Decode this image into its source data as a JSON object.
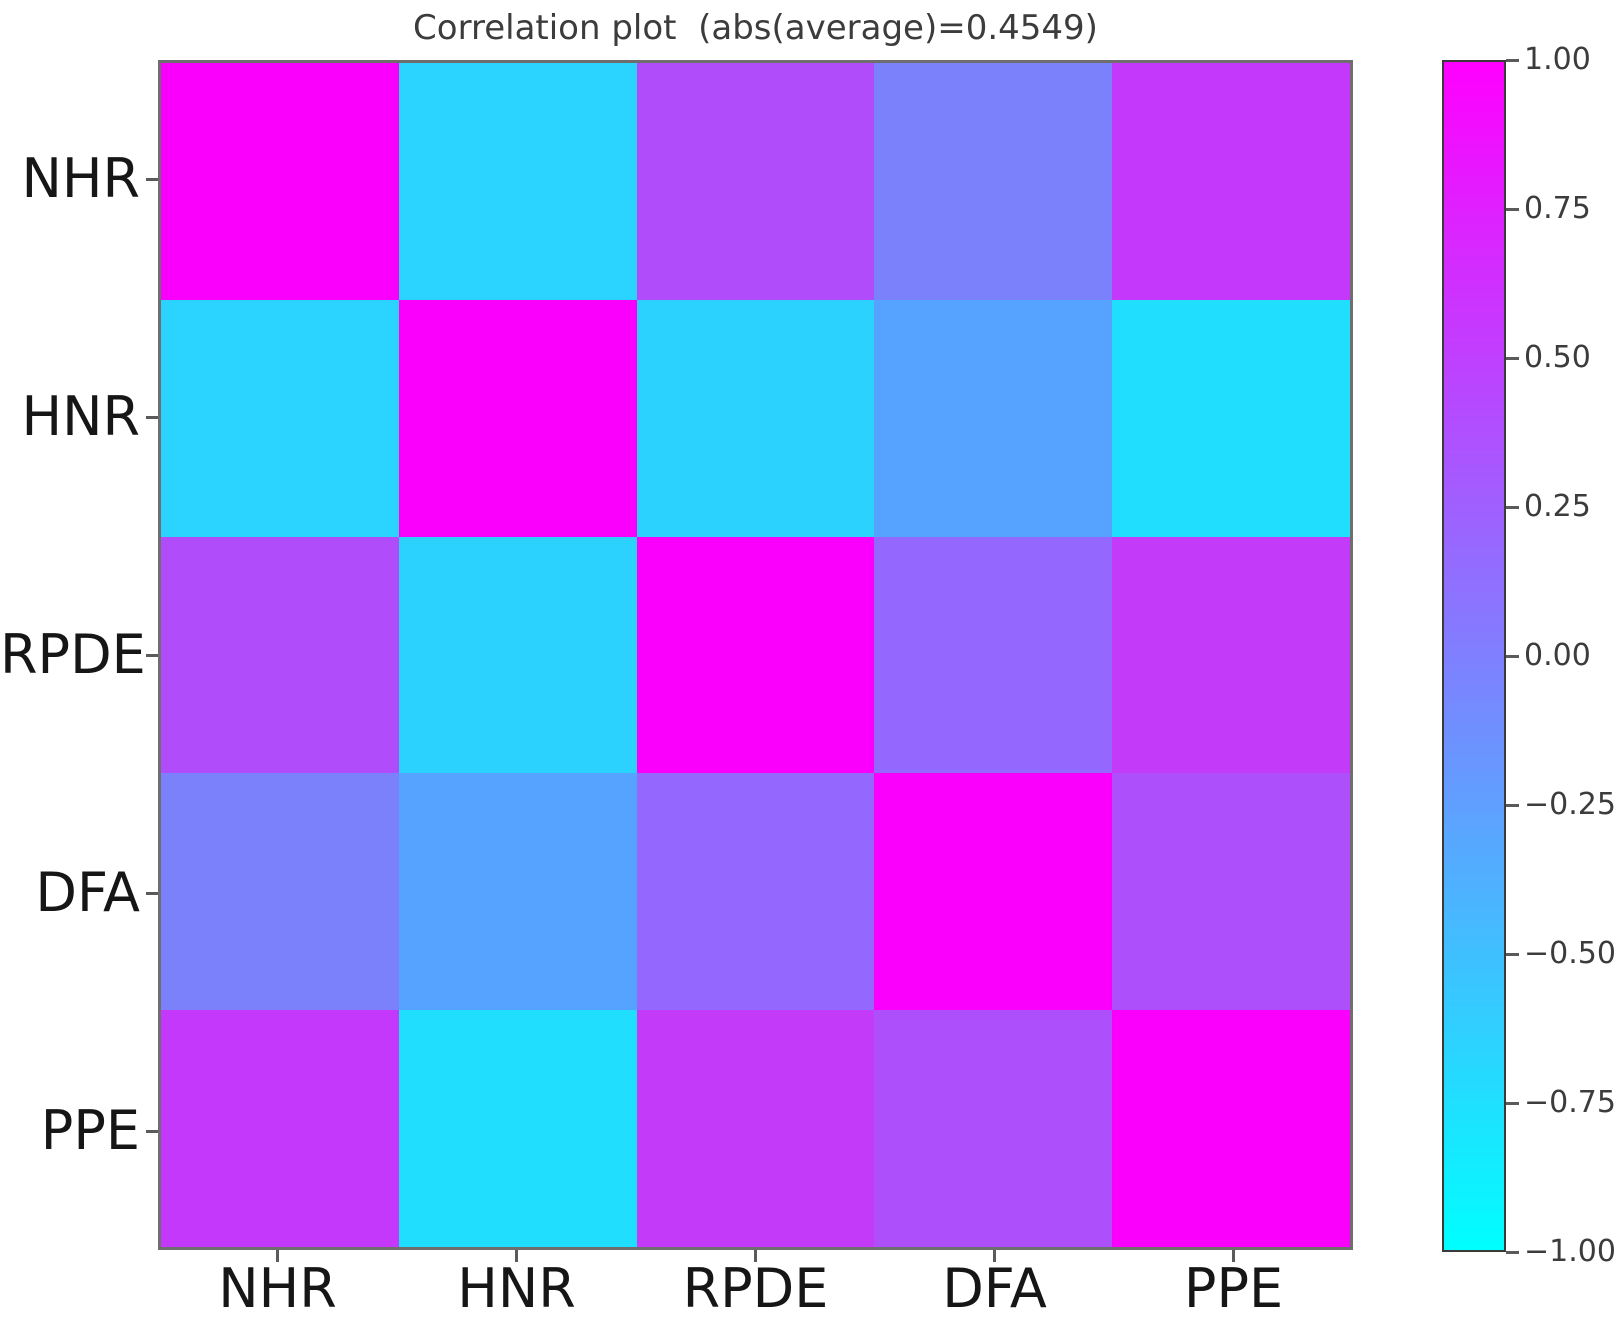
{
  "page": {
    "background": "#ffffff"
  },
  "chart_data": {
    "type": "heatmap",
    "title": "Correlation plot  (abs(average)=0.4549)",
    "abs_average": 0.4549,
    "x_labels": [
      "NHR",
      "HNR",
      "RPDE",
      "DFA",
      "PPE"
    ],
    "y_labels": [
      "NHR",
      "HNR",
      "RPDE",
      "DFA",
      "PPE"
    ],
    "vmin": -1.0,
    "vmax": 1.0,
    "grid": false,
    "colormap": {
      "name": "cool",
      "low_color": "#00ffff",
      "high_color": "#ff00ff"
    },
    "colorbar_tick_labels": [
      "1.00",
      "0.75",
      "0.50",
      "0.25",
      "0.00",
      "−0.25",
      "−0.50",
      "−0.75",
      "−1.00"
    ],
    "colorbar_tick_values": [
      1.0,
      0.75,
      0.5,
      0.25,
      0.0,
      -0.25,
      -0.5,
      -0.75,
      -1.0
    ],
    "values": [
      [
        1.0,
        -0.67,
        0.38,
        -0.04,
        0.53
      ],
      [
        -0.67,
        1.0,
        -0.65,
        -0.33,
        -0.75
      ],
      [
        0.38,
        -0.65,
        1.0,
        0.16,
        0.53
      ],
      [
        -0.04,
        -0.33,
        0.16,
        1.0,
        0.36
      ],
      [
        0.53,
        -0.75,
        0.53,
        0.36,
        1.0
      ]
    ],
    "cell_colors": [
      [
        "#fa00fc",
        "#2ad4fe",
        "#b04cfa",
        "#7b80fb",
        "#c338fa"
      ],
      [
        "#2ad4fe",
        "#fa00fc",
        "#2cd2fe",
        "#55a3fe",
        "#20defe"
      ],
      [
        "#b04cfa",
        "#2cd2fe",
        "#fa00fc",
        "#9467fe",
        "#c33bf8"
      ],
      [
        "#7b80fb",
        "#55a3fe",
        "#9467fe",
        "#fa00fc",
        "#ad4ffb"
      ],
      [
        "#c338fa",
        "#20defe",
        "#c33bf8",
        "#ad4ffb",
        "#fa00fc"
      ]
    ]
  }
}
